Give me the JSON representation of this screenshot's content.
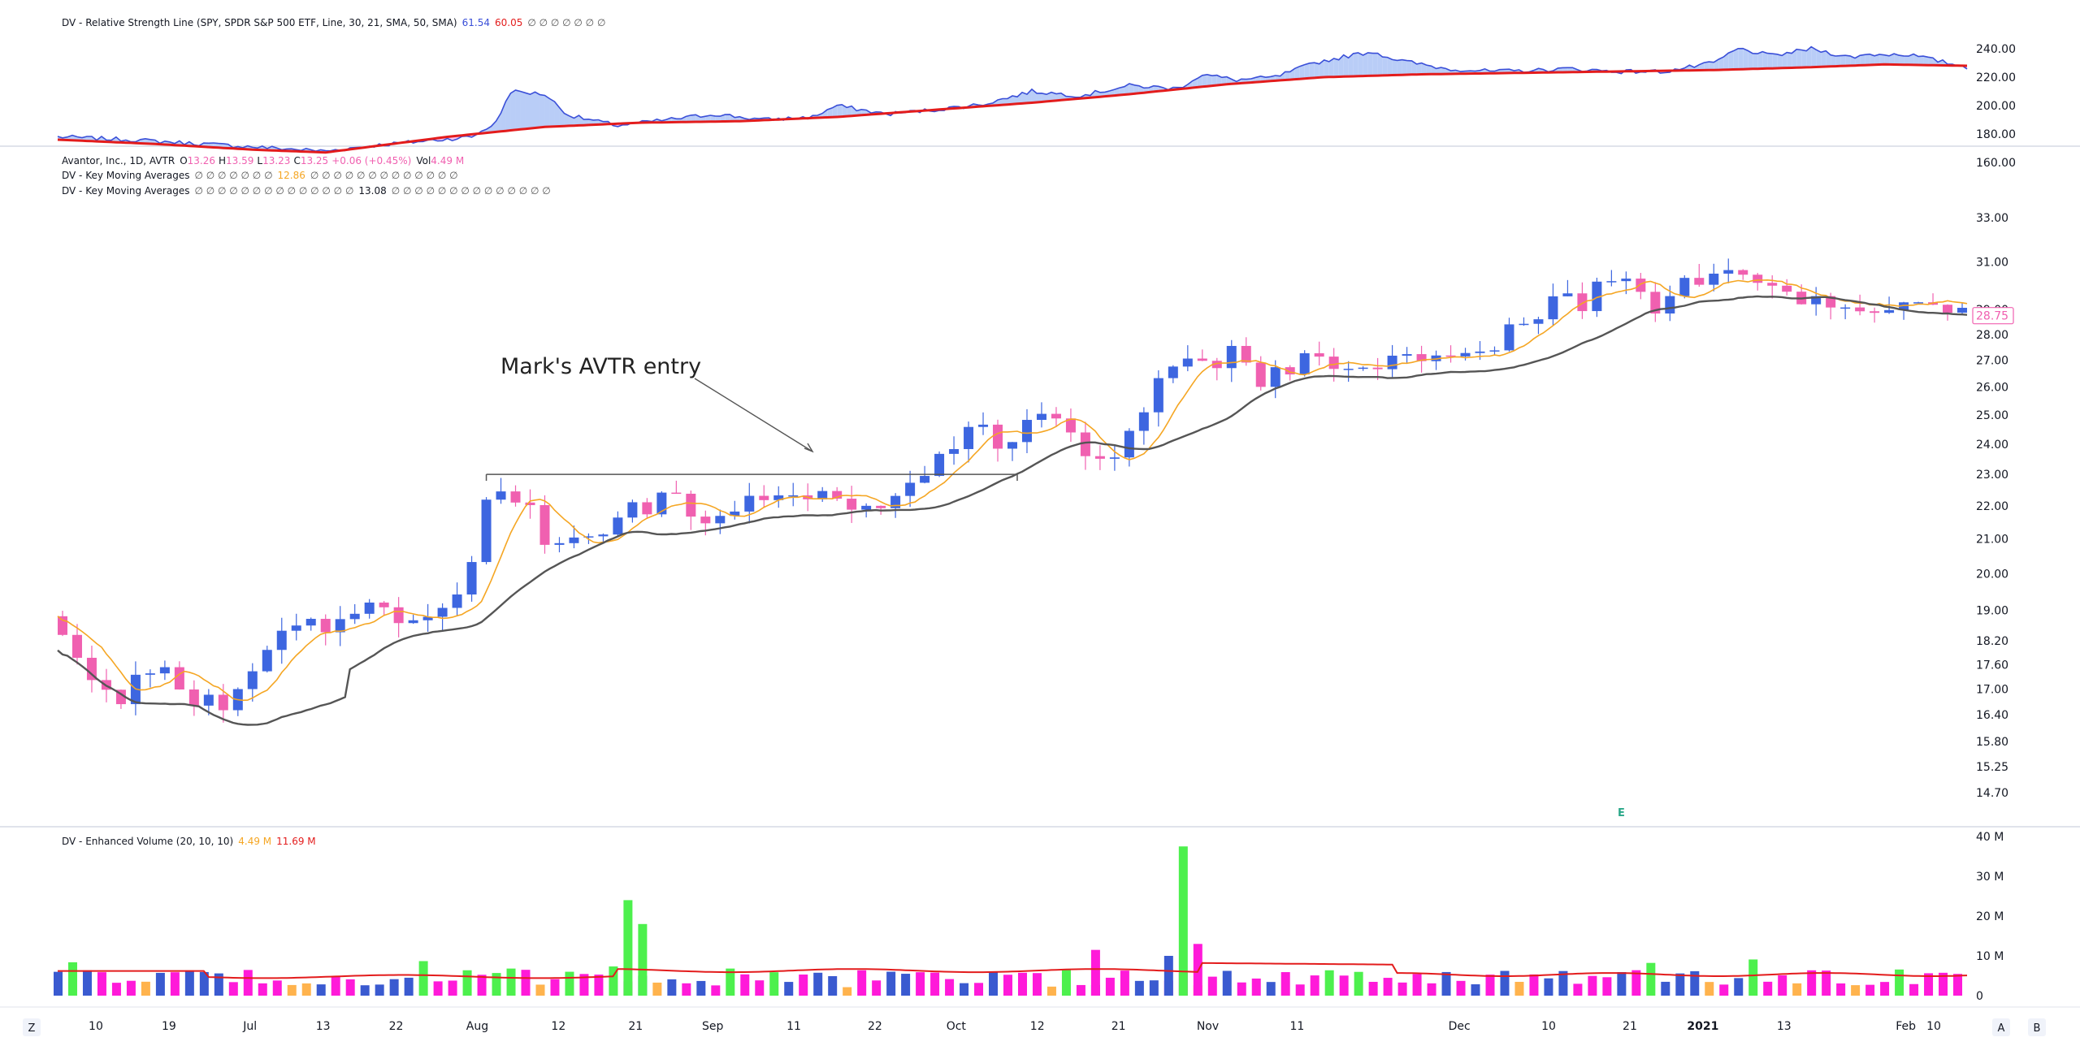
{
  "rs_panel": {
    "legend_name": "DV - Relative Strength Line (SPY, SPDR S&P 500 ETF, Line, 30, 21, SMA, 50, SMA)",
    "value1": "61.54",
    "value2": "60.05",
    "empty_values": [
      "∅",
      "∅",
      "∅",
      "∅",
      "∅",
      "∅",
      "∅"
    ],
    "axis_ticks": [
      "240.00",
      "220.00",
      "200.00",
      "180.00",
      "160.00"
    ]
  },
  "price_panel": {
    "legend": {
      "symbol": "Avantor, Inc., 1D, AVTR",
      "open_label": "O",
      "open": "13.26",
      "high_label": "H",
      "high": "13.59",
      "low_label": "L",
      "low": "13.23",
      "close_label": "C",
      "close": "13.25",
      "change": "+0.06 (+0.45%)",
      "vol_label": "Vol",
      "vol": "4.49 M"
    },
    "ma_row1": {
      "name": "DV - Key Moving Averages",
      "pre": [
        "∅",
        "∅",
        "∅",
        "∅",
        "∅",
        "∅",
        "∅"
      ],
      "value": "12.86",
      "post": [
        "∅",
        "∅",
        "∅",
        "∅",
        "∅",
        "∅",
        "∅",
        "∅",
        "∅",
        "∅",
        "∅",
        "∅",
        "∅"
      ]
    },
    "ma_row2": {
      "name": "DV - Key Moving Averages",
      "pre": [
        "∅",
        "∅",
        "∅",
        "∅",
        "∅",
        "∅",
        "∅",
        "∅",
        "∅",
        "∅",
        "∅",
        "∅",
        "∅",
        "∅"
      ],
      "value": "13.08",
      "post": [
        "∅",
        "∅",
        "∅",
        "∅",
        "∅",
        "∅",
        "∅",
        "∅",
        "∅",
        "∅",
        "∅",
        "∅",
        "∅",
        "∅"
      ]
    },
    "axis_ticks": [
      "33.00",
      "31.00",
      "29.00",
      "28.00",
      "27.00",
      "26.00",
      "25.00",
      "24.00",
      "23.00",
      "22.00",
      "21.00",
      "20.00",
      "19.00",
      "18.20",
      "17.60",
      "17.00",
      "16.40",
      "15.80",
      "15.25",
      "14.70"
    ],
    "last_price_label": "28.75",
    "annotation": "Mark's AVTR entry",
    "earnings_marker": "E"
  },
  "volume_panel": {
    "legend_name": "DV - Enhanced Volume (20, 10, 10)",
    "value1": "4.49 M",
    "value2": "11.69 M",
    "axis_ticks": [
      "40 M",
      "30 M",
      "20 M",
      "10 M",
      "0"
    ]
  },
  "time_axis": {
    "labels": [
      {
        "text": "10",
        "bold": false
      },
      {
        "text": "19",
        "bold": false
      },
      {
        "text": "Jul",
        "bold": false
      },
      {
        "text": "13",
        "bold": false
      },
      {
        "text": "22",
        "bold": false
      },
      {
        "text": "Aug",
        "bold": false
      },
      {
        "text": "12",
        "bold": false
      },
      {
        "text": "21",
        "bold": false
      },
      {
        "text": "Sep",
        "bold": false
      },
      {
        "text": "11",
        "bold": false
      },
      {
        "text": "22",
        "bold": false
      },
      {
        "text": "Oct",
        "bold": false
      },
      {
        "text": "12",
        "bold": false
      },
      {
        "text": "21",
        "bold": false
      },
      {
        "text": "Nov",
        "bold": false
      },
      {
        "text": "11",
        "bold": false
      },
      {
        "text": "Dec",
        "bold": false
      },
      {
        "text": "10",
        "bold": false
      },
      {
        "text": "21",
        "bold": false
      },
      {
        "text": "2021",
        "bold": true
      },
      {
        "text": "13",
        "bold": false
      },
      {
        "text": "Feb",
        "bold": false
      },
      {
        "text": "10",
        "bold": false
      }
    ],
    "left_button": "Z",
    "right_buttons": [
      "A",
      "B"
    ]
  },
  "colors": {
    "up": "#3d66e0",
    "down": "#f060b0",
    "ema": "#f5a623",
    "sma": "#555555",
    "rs_line": "#3a4fd8",
    "rs_ma": "#e31c1c",
    "rs_fill_up": "#b9cdf7",
    "rs_fill_down": "#f9c2ee",
    "vol_up": "#3a5ad0",
    "vol_down": "#ff1ad9",
    "vol_spike": "#4df04d",
    "vol_low": "#ffb34d",
    "vol_avg": "#e31c1c"
  },
  "chart_data": [
    {
      "type": "line",
      "title": "DV - Relative Strength Line (SPY, SPDR S&P 500 ETF, Line, 30, 21, SMA, 50, SMA)",
      "ylim": [
        150,
        245
      ],
      "series": [
        {
          "name": "",
          "points": [
            [
              0,
              178
            ],
            [
              15,
              176
            ],
            [
              30,
              173
            ],
            [
              45,
              170
            ],
            [
              55,
              168
            ],
            [
              65,
              172
            ],
            [
              75,
              175
            ],
            [
              85,
              178
            ],
            [
              90,
              188
            ],
            [
              93,
              210
            ],
            [
              100,
              208
            ],
            [
              105,
              193
            ],
            [
              115,
              186
            ],
            [
              125,
              190
            ],
            [
              135,
              194
            ],
            [
              145,
              190
            ],
            [
              155,
              192
            ],
            [
              160,
              200
            ],
            [
              170,
              194
            ],
            [
              180,
              197
            ],
            [
              190,
              201
            ],
            [
              200,
              210
            ],
            [
              210,
              207
            ],
            [
              220,
              214
            ],
            [
              230,
              212
            ],
            [
              235,
              222
            ],
            [
              242,
              218
            ],
            [
              250,
              220
            ],
            [
              258,
              230
            ],
            [
              265,
              235
            ],
            [
              270,
              238
            ],
            [
              275,
              232
            ],
            [
              285,
              226
            ],
            [
              295,
              224
            ],
            [
              305,
              225
            ],
            [
              310,
              226
            ],
            [
              320,
              224
            ],
            [
              330,
              224
            ],
            [
              340,
              230
            ],
            [
              345,
              240
            ],
            [
              352,
              235
            ],
            [
              360,
              240
            ],
            [
              368,
              234
            ],
            [
              372,
              236
            ],
            [
              380,
              236
            ],
            [
              388,
              230
            ],
            [
              392,
              227
            ]
          ]
        },
        {
          "name": "",
          "points": [
            [
              0,
              176
            ],
            [
              20,
              173
            ],
            [
              40,
              169
            ],
            [
              55,
              167
            ],
            [
              80,
              178
            ],
            [
              100,
              185
            ],
            [
              120,
              188
            ],
            [
              140,
              189
            ],
            [
              160,
              192
            ],
            [
              180,
              197
            ],
            [
              200,
              202
            ],
            [
              220,
              208
            ],
            [
              240,
              215
            ],
            [
              260,
              220
            ],
            [
              280,
              222
            ],
            [
              300,
              223
            ],
            [
              320,
              224
            ],
            [
              340,
              225
            ],
            [
              360,
              227
            ],
            [
              375,
              229
            ],
            [
              392,
              228
            ]
          ]
        }
      ]
    },
    {
      "type": "candlestick",
      "title": "Avantor, Inc., 1D, AVTR",
      "ylim": [
        14.5,
        33.5
      ],
      "ohlc": [],
      "moving_averages": [
        {
          "name": "",
          "values": []
        },
        {
          "name": "",
          "values": []
        }
      ],
      "annotations": [
        {
          "text": "Mark's AVTR entry",
          "level": 23.0
        }
      ]
    },
    {
      "type": "bar",
      "title": "DV - Enhanced Volume (20, 10, 10)",
      "ylim": [
        0,
        40
      ],
      "values": []
    }
  ]
}
